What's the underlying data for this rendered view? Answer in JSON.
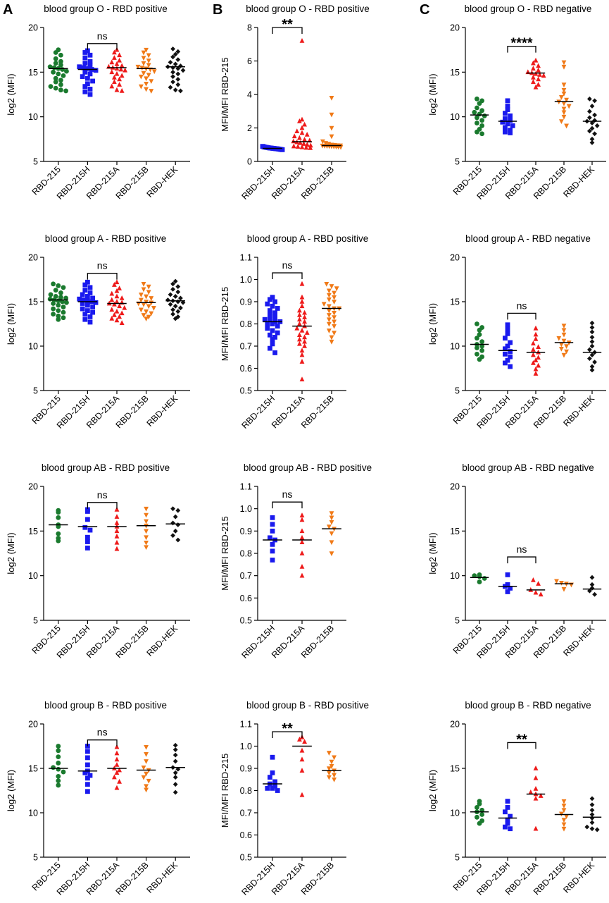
{
  "panel_letters": [
    "A",
    "B",
    "C"
  ],
  "colors": {
    "RBD-215": "#1a7a2e",
    "RBD-215H": "#1a1aee",
    "RBD-215A": "#ee1a1a",
    "RBD-215B": "#f07a18",
    "RBD-HEK": "#111111"
  },
  "markers": {
    "RBD-215": "circle",
    "RBD-215H": "square",
    "RBD-215A": "triangle-up",
    "RBD-215B": "triangle-down",
    "RBD-HEK": "diamond"
  },
  "chart_data": [
    {
      "id": "A1",
      "type": "scatter",
      "title": "blood group O - RBD positive",
      "ylabel": "log2 (MFI)",
      "ylim": [
        5,
        20
      ],
      "yticks": [
        "5",
        "10",
        "15",
        "20"
      ],
      "categories": [
        "RBD-215",
        "RBD-215H",
        "RBD-215A",
        "RBD-215B",
        "RBD-HEK"
      ],
      "medians": [
        15.4,
        15.3,
        15.5,
        15.4,
        15.6
      ],
      "points": [
        [
          17.5,
          17.2,
          16.9,
          16.5,
          16.2,
          16.0,
          15.8,
          15.6,
          15.5,
          15.4,
          15.3,
          15.1,
          15.0,
          14.8,
          14.6,
          14.3,
          14.1,
          13.9,
          13.6,
          13.4,
          13.2,
          13.0,
          12.9
        ],
        [
          17.4,
          17.2,
          16.9,
          16.6,
          16.2,
          16.0,
          15.8,
          15.6,
          15.5,
          15.4,
          15.3,
          15.2,
          15.0,
          14.8,
          14.5,
          14.3,
          14.0,
          13.7,
          13.4,
          13.1,
          12.8,
          12.5
        ],
        [
          17.5,
          17.2,
          16.9,
          16.6,
          16.3,
          16.1,
          15.9,
          15.7,
          15.6,
          15.5,
          15.4,
          15.3,
          15.2,
          15.0,
          14.8,
          14.6,
          14.4,
          14.2,
          13.9,
          13.6,
          13.4,
          13.0,
          12.9
        ],
        [
          17.5,
          17.2,
          16.9,
          16.6,
          16.3,
          16.0,
          15.8,
          15.6,
          15.5,
          15.4,
          15.3,
          15.1,
          14.9,
          14.7,
          14.5,
          14.3,
          14.0,
          13.7,
          13.4,
          13.1,
          12.9
        ],
        [
          17.6,
          17.3,
          17.0,
          16.7,
          16.4,
          16.1,
          15.9,
          15.7,
          15.6,
          15.5,
          15.4,
          15.2,
          15.0,
          14.8,
          14.5,
          14.2,
          13.9,
          13.6,
          13.3,
          13.0,
          12.9
        ]
      ],
      "comparison": {
        "from": 1,
        "to": 2,
        "label": "ns",
        "y": 18.2
      }
    },
    {
      "id": "B1",
      "type": "scatter",
      "title": "blood group O - RBD positive",
      "ylabel": "MFI/MFI RBD-215",
      "ylim": [
        0,
        8
      ],
      "yticks": [
        "0",
        "2",
        "4",
        "6",
        "8"
      ],
      "categories": [
        "RBD-215H",
        "RBD-215A",
        "RBD-215B"
      ],
      "medians": [
        0.78,
        1.18,
        0.95
      ],
      "points": [
        [
          0.9,
          0.88,
          0.86,
          0.85,
          0.84,
          0.83,
          0.82,
          0.81,
          0.8,
          0.8,
          0.79,
          0.78,
          0.78,
          0.77,
          0.76,
          0.76,
          0.75,
          0.74,
          0.73,
          0.72,
          0.71,
          0.7
        ],
        [
          7.2,
          2.5,
          2.4,
          2.2,
          2.0,
          1.8,
          1.7,
          1.6,
          1.5,
          1.4,
          1.3,
          1.25,
          1.2,
          1.15,
          1.1,
          1.05,
          1.0,
          0.95,
          0.9,
          0.88,
          0.85,
          0.82,
          0.8
        ],
        [
          3.8,
          2.8,
          2.0,
          1.5,
          1.2,
          1.1,
          1.05,
          1.0,
          0.98,
          0.96,
          0.95,
          0.94,
          0.93,
          0.92,
          0.91,
          0.9,
          0.89,
          0.88,
          0.87,
          0.86
        ]
      ],
      "comparison": {
        "from": 0,
        "to": 1,
        "label": "**",
        "y": 8.0
      }
    },
    {
      "id": "C1",
      "type": "scatter",
      "title": "blood group O - RBD negative",
      "ylabel": "log2 (MFI)",
      "ylim": [
        5,
        20
      ],
      "yticks": [
        "5",
        "10",
        "15",
        "20"
      ],
      "categories": [
        "RBD-215",
        "RBD-215H",
        "RBD-215A",
        "RBD-215B",
        "RBD-HEK"
      ],
      "medians": [
        10.2,
        9.5,
        14.9,
        11.7,
        9.5
      ],
      "points": [
        [
          12.0,
          11.8,
          11.5,
          11.0,
          10.7,
          10.5,
          10.3,
          10.1,
          9.9,
          9.6,
          9.3,
          9.0,
          8.6,
          8.3,
          8.1
        ],
        [
          11.8,
          11.2,
          10.8,
          10.4,
          10.1,
          9.8,
          9.6,
          9.4,
          9.2,
          9.0,
          8.8,
          8.5,
          8.3,
          8.2
        ],
        [
          16.3,
          16.0,
          15.7,
          15.4,
          15.2,
          15.0,
          14.9,
          14.8,
          14.7,
          14.6,
          14.4,
          14.2,
          13.9,
          13.6,
          13.3
        ],
        [
          16.1,
          15.6,
          13.6,
          13.0,
          12.6,
          12.2,
          11.9,
          11.7,
          11.5,
          11.2,
          10.9,
          10.5,
          10.0,
          9.5,
          9.0
        ],
        [
          12.0,
          11.8,
          11.2,
          10.6,
          10.2,
          9.9,
          9.6,
          9.5,
          9.3,
          9.0,
          8.7,
          8.4,
          8.1,
          7.5,
          7.1
        ]
      ],
      "comparison": {
        "from": 1,
        "to": 2,
        "label": "****",
        "y": 17.9
      }
    },
    {
      "id": "A2",
      "type": "scatter",
      "title": "blood group A - RBD positive",
      "ylabel": "log2 (MFI)",
      "ylim": [
        5,
        20
      ],
      "yticks": [
        "5",
        "10",
        "15",
        "20"
      ],
      "categories": [
        "RBD-215",
        "RBD-215H",
        "RBD-215A",
        "RBD-215B",
        "RBD-HEK"
      ],
      "medians": [
        15.2,
        15.0,
        14.8,
        14.9,
        15.1
      ],
      "points": [
        [
          17.0,
          16.8,
          16.6,
          16.3,
          16.0,
          15.8,
          15.6,
          15.5,
          15.4,
          15.3,
          15.2,
          15.1,
          15.0,
          14.9,
          14.8,
          14.6,
          14.4,
          14.2,
          14.0,
          13.8,
          13.6,
          13.4,
          13.2,
          13.0
        ],
        [
          17.2,
          16.9,
          16.6,
          16.3,
          16.0,
          15.8,
          15.6,
          15.4,
          15.3,
          15.2,
          15.1,
          15.0,
          14.9,
          14.8,
          14.6,
          14.4,
          14.2,
          14.0,
          13.8,
          13.6,
          13.3,
          13.0,
          12.7
        ],
        [
          17.2,
          16.9,
          16.5,
          16.2,
          15.9,
          15.6,
          15.4,
          15.2,
          15.0,
          14.9,
          14.8,
          14.7,
          14.5,
          14.3,
          14.1,
          13.9,
          13.7,
          13.5,
          13.3,
          13.1,
          12.9,
          12.6
        ],
        [
          17.0,
          16.7,
          16.4,
          16.1,
          15.8,
          15.6,
          15.4,
          15.2,
          15.0,
          14.9,
          14.8,
          14.7,
          14.5,
          14.3,
          14.1,
          13.9,
          13.7,
          13.5,
          13.3,
          13.1
        ],
        [
          17.3,
          17.0,
          16.7,
          16.4,
          16.1,
          15.8,
          15.6,
          15.4,
          15.2,
          15.1,
          15.0,
          14.9,
          14.7,
          14.5,
          14.3,
          14.1,
          13.9,
          13.6,
          13.3,
          13.1
        ]
      ],
      "comparison": {
        "from": 1,
        "to": 2,
        "label": "ns",
        "y": 18.2
      }
    },
    {
      "id": "B2",
      "type": "scatter",
      "title": "blood group A - RBD positive",
      "ylabel": "MFI/MFI RBD-215",
      "ylim": [
        0.5,
        1.1
      ],
      "yticks": [
        "0.5",
        "0.6",
        "0.7",
        "0.8",
        "0.9",
        "1.0",
        "1.1"
      ],
      "categories": [
        "RBD-215H",
        "RBD-215A",
        "RBD-215B"
      ],
      "medians": [
        0.81,
        0.79,
        0.87
      ],
      "points": [
        [
          0.92,
          0.91,
          0.9,
          0.89,
          0.88,
          0.87,
          0.86,
          0.85,
          0.84,
          0.83,
          0.82,
          0.82,
          0.81,
          0.81,
          0.8,
          0.8,
          0.79,
          0.78,
          0.77,
          0.76,
          0.75,
          0.74,
          0.73,
          0.71,
          0.69,
          0.67
        ],
        [
          0.98,
          0.92,
          0.9,
          0.88,
          0.86,
          0.85,
          0.84,
          0.83,
          0.82,
          0.81,
          0.8,
          0.79,
          0.78,
          0.77,
          0.76,
          0.75,
          0.74,
          0.73,
          0.72,
          0.71,
          0.7,
          0.68,
          0.66,
          0.63,
          0.55
        ],
        [
          0.98,
          0.97,
          0.96,
          0.95,
          0.94,
          0.93,
          0.92,
          0.91,
          0.9,
          0.89,
          0.88,
          0.87,
          0.87,
          0.86,
          0.85,
          0.84,
          0.83,
          0.82,
          0.81,
          0.8,
          0.79,
          0.77,
          0.76,
          0.74,
          0.72
        ]
      ],
      "comparison": {
        "from": 0,
        "to": 1,
        "label": "ns",
        "y": 1.03
      }
    },
    {
      "id": "C2",
      "type": "scatter",
      "title": "blood group A - RBD negative",
      "ylabel": "log2 (MFI)",
      "ylim": [
        5,
        20
      ],
      "yticks": [
        "5",
        "10",
        "15",
        "20"
      ],
      "categories": [
        "RBD-215",
        "RBD-215H",
        "RBD-215A",
        "RBD-215B",
        "RBD-HEK"
      ],
      "medians": [
        10.2,
        9.5,
        9.3,
        10.4,
        9.3
      ],
      "points": [
        [
          12.5,
          12.1,
          11.8,
          11.3,
          10.9,
          10.5,
          10.2,
          10.0,
          9.8,
          9.5,
          9.1,
          8.8,
          8.5
        ],
        [
          12.4,
          11.9,
          11.4,
          10.9,
          10.4,
          10.0,
          9.7,
          9.4,
          9.1,
          8.8,
          8.4,
          8.1,
          7.7
        ],
        [
          12.0,
          11.3,
          10.8,
          10.3,
          9.9,
          9.6,
          9.3,
          9.0,
          8.7,
          8.4,
          8.1,
          7.8,
          7.4,
          6.9
        ],
        [
          12.3,
          11.8,
          11.3,
          10.9,
          10.6,
          10.4,
          10.2,
          10.0,
          9.7,
          9.4,
          9.0
        ],
        [
          12.6,
          12.1,
          11.6,
          11.0,
          10.5,
          10.0,
          9.6,
          9.3,
          9.0,
          8.6,
          8.2,
          7.7,
          7.3
        ]
      ],
      "comparison": {
        "from": 1,
        "to": 2,
        "label": "ns",
        "y": 13.7
      }
    },
    {
      "id": "A3",
      "type": "scatter",
      "title": "blood group AB - RBD positive",
      "ylabel": "log2 (MFI)",
      "ylim": [
        5,
        20
      ],
      "yticks": [
        "5",
        "10",
        "15",
        "20"
      ],
      "categories": [
        "RBD-215",
        "RBD-215H",
        "RBD-215A",
        "RBD-215B",
        "RBD-HEK"
      ],
      "medians": [
        15.7,
        15.5,
        15.5,
        15.6,
        15.8
      ],
      "points": [
        [
          17.3,
          17.1,
          16.5,
          15.7,
          15.5,
          14.7,
          14.2,
          13.9
        ],
        [
          17.4,
          17.2,
          16.3,
          15.4,
          15.1,
          14.3,
          13.8,
          13.1
        ],
        [
          17.4,
          16.6,
          15.9,
          15.5,
          15.0,
          14.4,
          13.7,
          13.0
        ],
        [
          17.5,
          16.8,
          16.1,
          15.6,
          15.0,
          14.3,
          13.7,
          13.2
        ],
        [
          17.5,
          17.3,
          16.6,
          15.9,
          15.7,
          15.0,
          14.5,
          14.0
        ]
      ],
      "comparison": {
        "from": 1,
        "to": 2,
        "label": "ns",
        "y": 18.2
      }
    },
    {
      "id": "B3",
      "type": "scatter",
      "title": "blood group AB - RBD positive",
      "ylabel": "MFI/MFI RBD-215",
      "ylim": [
        0.5,
        1.1
      ],
      "yticks": [
        "0.5",
        "0.6",
        "0.7",
        "0.8",
        "0.9",
        "1.0",
        "1.1"
      ],
      "categories": [
        "RBD-215H",
        "RBD-215A",
        "RBD-215B"
      ],
      "medians": [
        0.86,
        0.86,
        0.91
      ],
      "points": [
        [
          0.96,
          0.93,
          0.9,
          0.87,
          0.86,
          0.84,
          0.81,
          0.77
        ],
        [
          0.97,
          0.95,
          0.9,
          0.87,
          0.85,
          0.8,
          0.74,
          0.7
        ],
        [
          0.98,
          0.96,
          0.94,
          0.92,
          0.91,
          0.89,
          0.85,
          0.8
        ]
      ],
      "comparison": {
        "from": 0,
        "to": 1,
        "label": "ns",
        "y": 1.03
      }
    },
    {
      "id": "C3",
      "type": "scatter",
      "title": "blood group AB - RBD negative",
      "ylabel": "log2 (MFI)",
      "ylim": [
        5,
        20
      ],
      "yticks": [
        "5",
        "10",
        "15",
        "20"
      ],
      "categories": [
        "RBD-215",
        "RBD-215H",
        "RBD-215A",
        "RBD-215B",
        "RBD-HEK"
      ],
      "medians": [
        9.8,
        8.8,
        8.4,
        9.1,
        8.5
      ],
      "points": [
        [
          10.1,
          10.0,
          9.9,
          9.7,
          9.3
        ],
        [
          10.1,
          9.0,
          8.8,
          8.6,
          8.2
        ],
        [
          9.5,
          9.1,
          8.4,
          8.1,
          7.9
        ],
        [
          9.4,
          9.2,
          9.1,
          9.0,
          8.5
        ],
        [
          9.8,
          9.0,
          8.6,
          8.3,
          7.9
        ]
      ],
      "comparison": {
        "from": 1,
        "to": 2,
        "label": "ns",
        "y": 12.1
      }
    },
    {
      "id": "A4",
      "type": "scatter",
      "title": "blood group B - RBD positive",
      "ylabel": "log2 (MFI)",
      "ylim": [
        5,
        20
      ],
      "yticks": [
        "5",
        "10",
        "15",
        "20"
      ],
      "categories": [
        "RBD-215",
        "RBD-215H",
        "RBD-215A",
        "RBD-215B",
        "RBD-HEK"
      ],
      "medians": [
        15.0,
        14.7,
        15.0,
        14.8,
        15.1
      ],
      "points": [
        [
          17.5,
          17.0,
          16.3,
          15.6,
          15.1,
          14.9,
          14.6,
          14.1,
          13.6,
          13.1
        ],
        [
          17.5,
          16.9,
          16.2,
          15.4,
          14.7,
          14.5,
          14.2,
          13.9,
          13.2,
          12.4
        ],
        [
          17.4,
          16.7,
          16.0,
          15.4,
          15.0,
          14.8,
          14.5,
          14.0,
          13.5,
          12.8
        ],
        [
          17.4,
          16.6,
          15.8,
          15.1,
          14.8,
          14.4,
          14.0,
          13.6,
          13.0,
          12.6
        ],
        [
          17.6,
          17.1,
          16.5,
          15.8,
          15.1,
          14.9,
          14.5,
          14.0,
          13.2,
          12.3
        ]
      ],
      "comparison": {
        "from": 1,
        "to": 2,
        "label": "ns",
        "y": 18.2
      }
    },
    {
      "id": "B4",
      "type": "scatter",
      "title": "blood group B - RBD positive",
      "ylabel": "MFI/MFI RBD-215",
      "ylim": [
        0.5,
        1.1
      ],
      "yticks": [
        "0.5",
        "0.6",
        "0.7",
        "0.8",
        "0.9",
        "1.0",
        "1.1"
      ],
      "categories": [
        "RBD-215H",
        "RBD-215A",
        "RBD-215B"
      ],
      "medians": [
        0.83,
        1.0,
        0.89
      ],
      "points": [
        [
          0.95,
          0.88,
          0.86,
          0.84,
          0.83,
          0.82,
          0.81,
          0.81,
          0.8
        ],
        [
          1.04,
          1.03,
          1.02,
          0.98,
          0.94,
          0.89,
          0.78
        ],
        [
          0.97,
          0.95,
          0.93,
          0.91,
          0.9,
          0.89,
          0.88,
          0.87,
          0.86,
          0.85
        ]
      ],
      "comparison": {
        "from": 0,
        "to": 1,
        "label": "**",
        "y": 1.065
      }
    },
    {
      "id": "C4",
      "type": "scatter",
      "title": "blood group B - RBD negative",
      "ylabel": "log2 (MFI)",
      "ylim": [
        5,
        20
      ],
      "yticks": [
        "5",
        "10",
        "15",
        "20"
      ],
      "categories": [
        "RBD-215",
        "RBD-215H",
        "RBD-215A",
        "RBD-215B",
        "RBD-HEK"
      ],
      "medians": [
        10.1,
        9.4,
        12.1,
        9.8,
        9.5
      ],
      "points": [
        [
          11.3,
          11.0,
          10.6,
          10.3,
          10.1,
          9.8,
          9.5,
          9.1,
          8.8
        ],
        [
          11.3,
          10.6,
          10.1,
          9.6,
          9.2,
          8.8,
          8.4,
          8.2
        ],
        [
          15.0,
          13.9,
          12.7,
          12.3,
          12.1,
          11.9,
          11.6,
          8.2
        ],
        [
          11.3,
          10.8,
          10.3,
          9.9,
          9.6,
          9.2,
          8.7,
          8.2
        ],
        [
          11.6,
          10.9,
          10.3,
          9.8,
          9.4,
          8.9,
          8.4,
          8.2,
          8.1
        ]
      ],
      "comparison": {
        "from": 1,
        "to": 2,
        "label": "**",
        "y": 17.9
      }
    }
  ]
}
